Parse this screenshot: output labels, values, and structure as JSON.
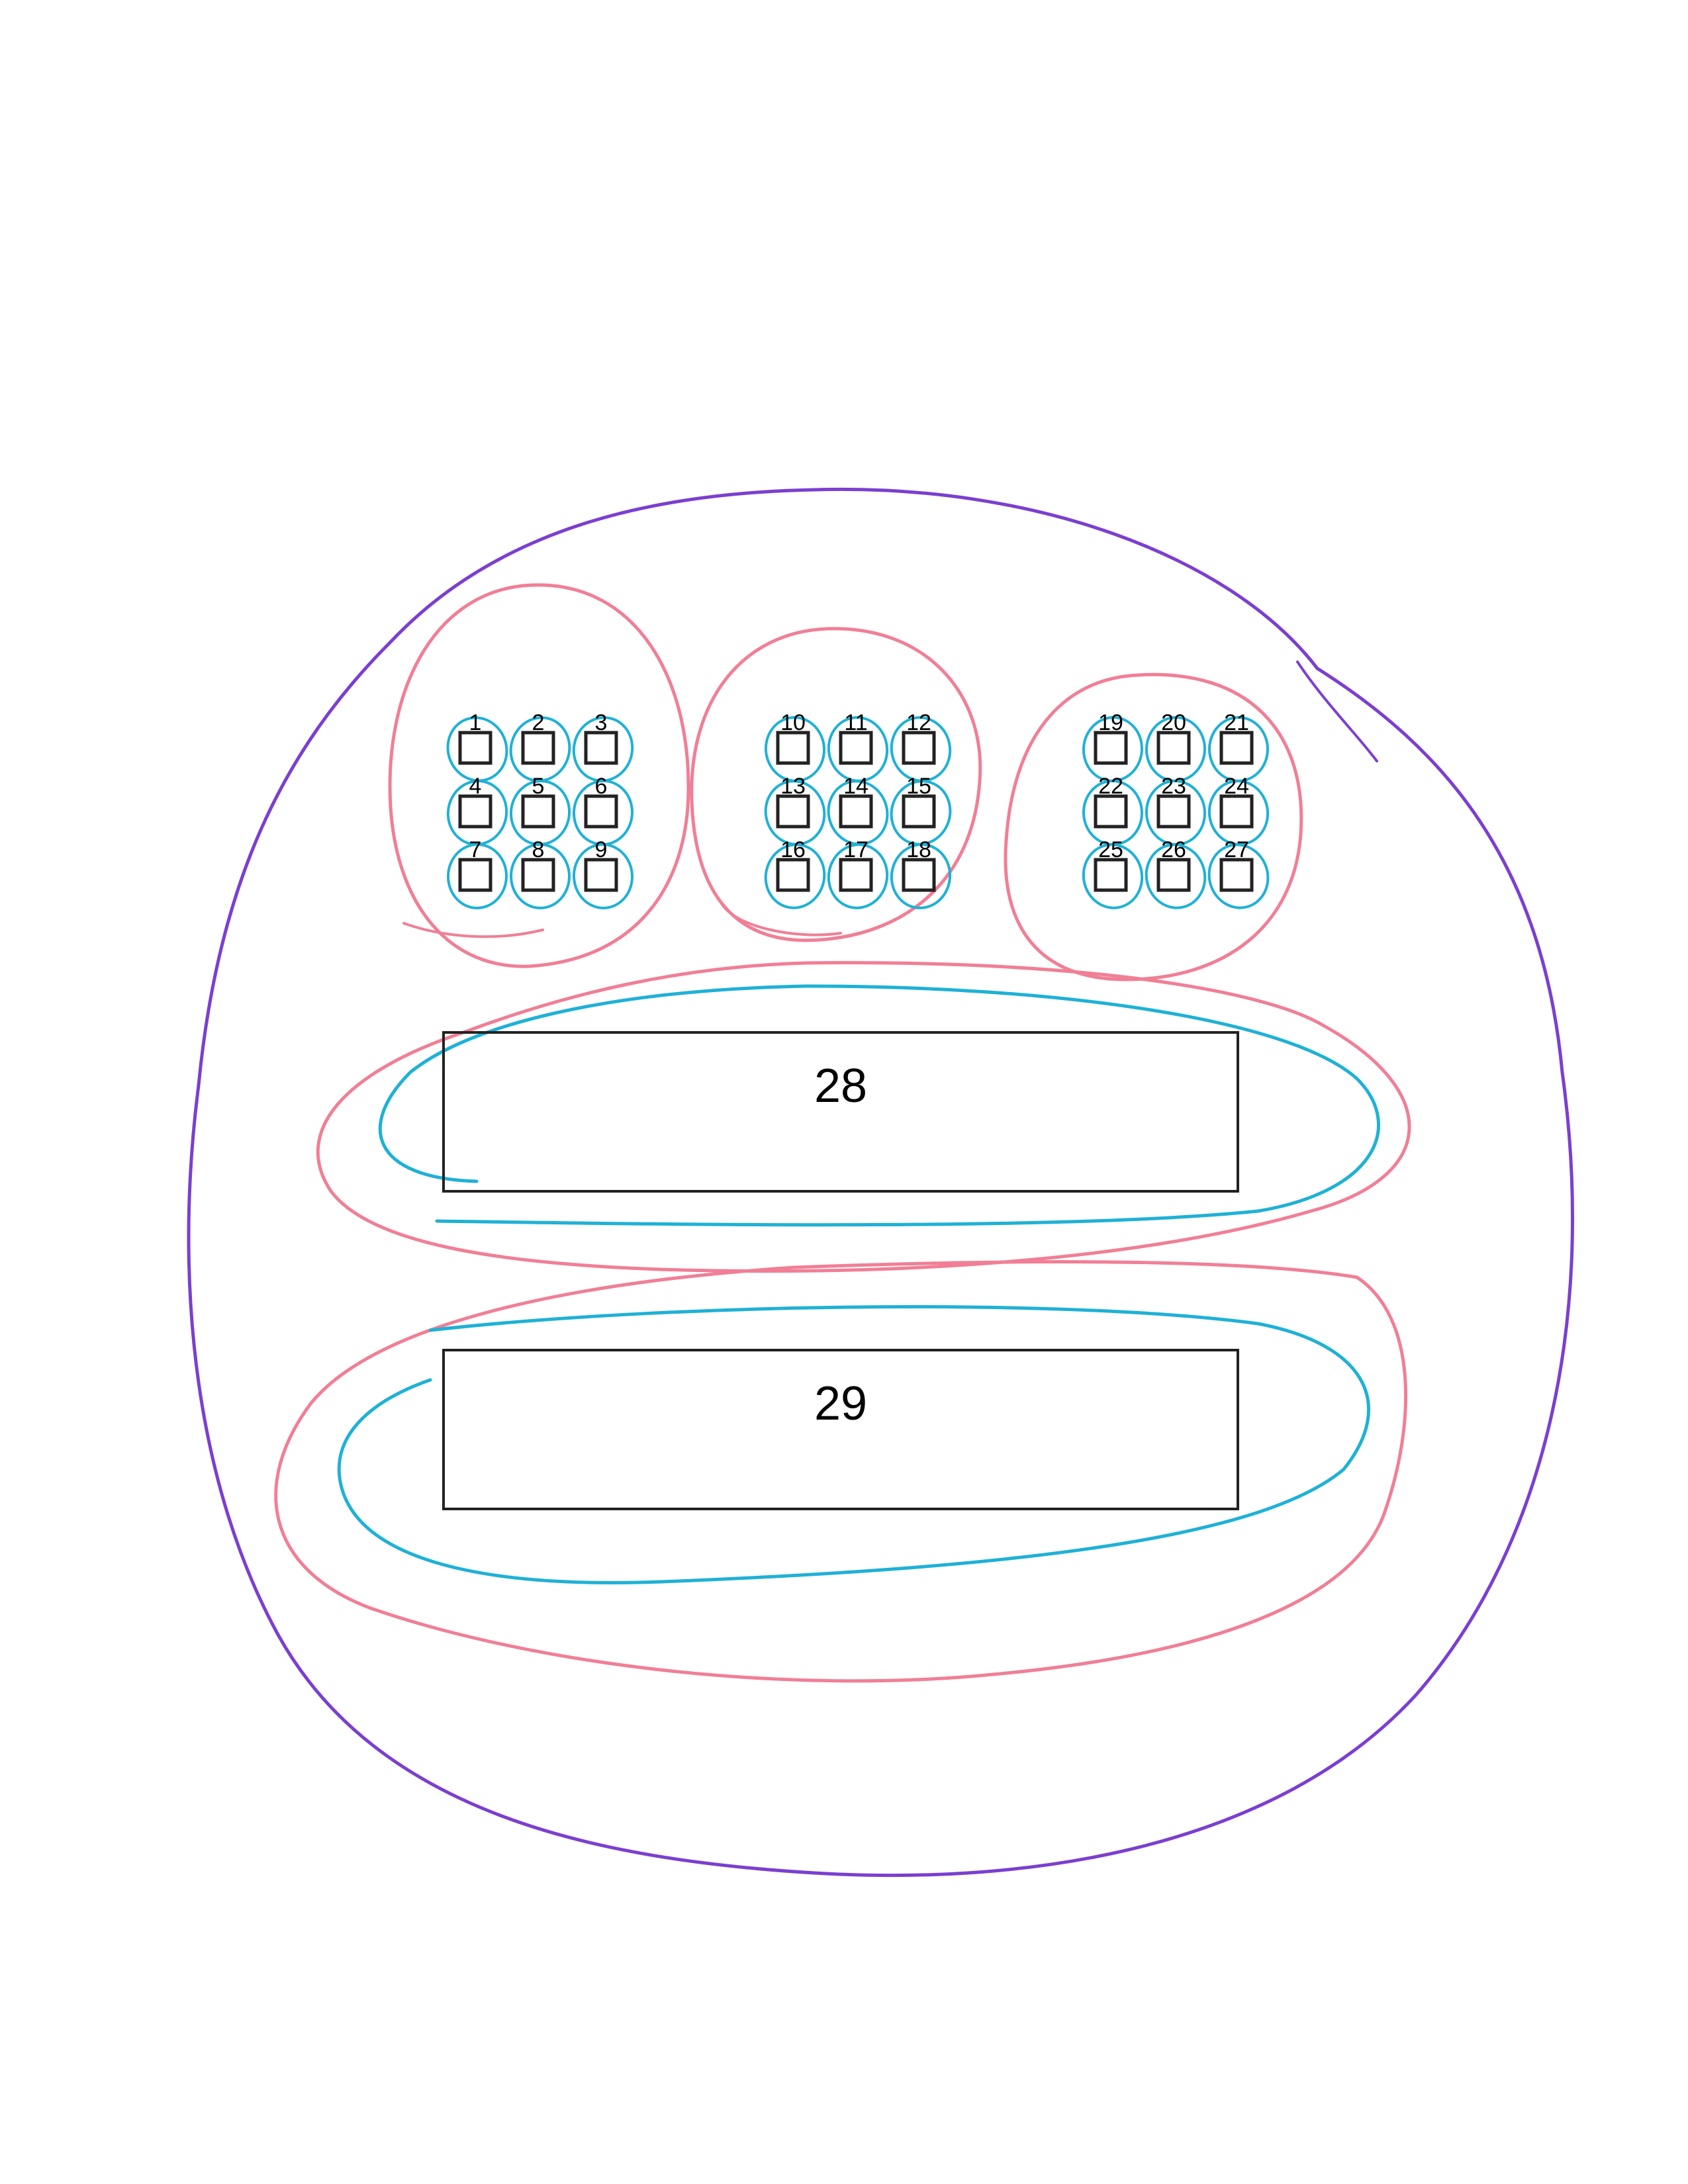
{
  "diagram": {
    "cells": [
      "1",
      "2",
      "3",
      "4",
      "5",
      "6",
      "7",
      "8",
      "9",
      "10",
      "11",
      "12",
      "13",
      "14",
      "15",
      "16",
      "17",
      "18",
      "19",
      "20",
      "21",
      "22",
      "23",
      "24",
      "25",
      "26",
      "27"
    ],
    "boxes": [
      "28",
      "29"
    ]
  },
  "colors": {
    "outer_loop": "#7b3fd0",
    "group_loop": "#f07f95",
    "cell_loop": "#1fb1d6",
    "box_border": "#222222"
  }
}
